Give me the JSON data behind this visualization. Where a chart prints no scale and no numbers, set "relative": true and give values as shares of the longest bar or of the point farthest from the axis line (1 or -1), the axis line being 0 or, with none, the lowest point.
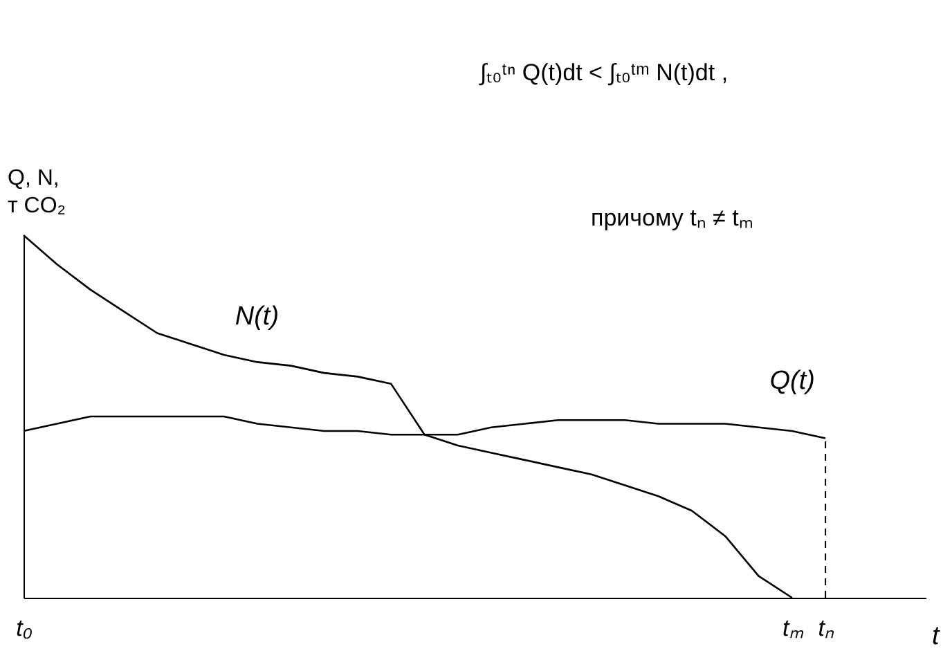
{
  "chart_data": {
    "type": "line",
    "relative": true,
    "ylabel": "Q, N,\nт CO₂",
    "xlabel": "t",
    "categories": [
      "t₀",
      null,
      null,
      null,
      null,
      null,
      null,
      null,
      null,
      null,
      null,
      null,
      null,
      null,
      null,
      null,
      null,
      null,
      null,
      null,
      null,
      null,
      null,
      "tₘ",
      "tₙ",
      null,
      null,
      null
    ],
    "series": [
      {
        "name": "N(t)",
        "color": "#000000",
        "values": [
          1.0,
          0.92,
          0.85,
          0.79,
          0.73,
          0.7,
          0.67,
          0.65,
          0.64,
          0.62,
          0.61,
          0.59,
          0.45,
          0.42,
          0.4,
          0.38,
          0.36,
          0.34,
          0.31,
          0.28,
          0.24,
          0.17,
          0.06,
          0.0,
          null,
          null,
          null,
          null
        ]
      },
      {
        "name": "Q(t)",
        "color": "#000000",
        "values": [
          0.46,
          0.48,
          0.5,
          0.5,
          0.5,
          0.5,
          0.5,
          0.48,
          0.47,
          0.46,
          0.46,
          0.45,
          0.45,
          0.45,
          0.47,
          0.48,
          0.49,
          0.49,
          0.49,
          0.48,
          0.48,
          0.48,
          0.47,
          0.46,
          0.44,
          null,
          null,
          null
        ]
      }
    ],
    "ref_lines": [
      {
        "axis": "x",
        "value": "tₙ",
        "line_style": "dashed"
      }
    ],
    "annotations": [
      "∫ₜ₀ᵗⁿ Q(t)dt < ∫ₜ₀ᵗᵐ N(t)dt ,",
      "причому tₙ ≠ tₘ"
    ],
    "marker": "none",
    "line_style": "solid"
  }
}
